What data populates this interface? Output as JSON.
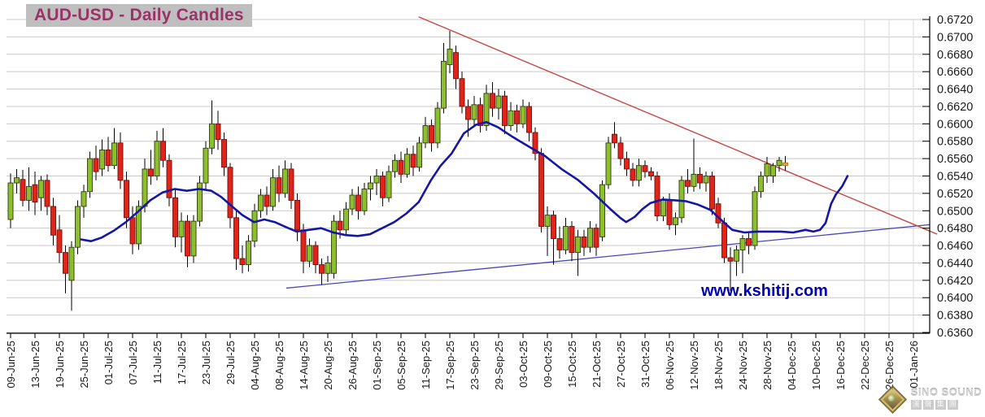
{
  "title": "AUD-USD - Daily Candles",
  "watermark": "www.kshitij.com",
  "logo": {
    "name": "SINO SOUND",
    "chinese": "漢聲集團"
  },
  "colors": {
    "up": "#8dbf2d",
    "up_border": "#2f3a12",
    "down": "#e02419",
    "down_border": "#701008",
    "wick": "#000000",
    "ma_line": "#1515a8",
    "trend_red": "#c84545",
    "trend_blue": "#4747bb",
    "grid": "#c9c9c9",
    "grid_future": "#d9d9d9",
    "axis": "#000000",
    "tick_text": "#1a1a1a",
    "last_candle_fill": "#c9b45a",
    "last_candle_border": "#c07000"
  },
  "chart_data": {
    "type": "candlestick",
    "title": "AUD-USD - Daily Candles",
    "ylim": [
      0.636,
      0.672
    ],
    "y_tick_labels": [
      "0.6720",
      "0.6700",
      "0.6680",
      "0.6660",
      "0.6640",
      "0.6620",
      "0.6600",
      "0.6580",
      "0.6560",
      "0.6540",
      "0.6520",
      "0.6500",
      "0.6480",
      "0.6460",
      "0.6440",
      "0.6420",
      "0.6400",
      "0.6380",
      "0.6360"
    ],
    "x_tick_labels": [
      "09-Jun-25",
      "13-Jun-25",
      "19-Jun-25",
      "25-Jun-25",
      "01-Jul-25",
      "07-Jul-25",
      "11-Jul-25",
      "17-Jul-25",
      "23-Jul-25",
      "29-Jul-25",
      "04-Aug-25",
      "08-Aug-25",
      "14-Aug-25",
      "20-Aug-25",
      "26-Aug-25",
      "01-Sep-25",
      "05-Sep-25",
      "11-Sep-25",
      "17-Sep-25",
      "23-Sep-25",
      "29-Sep-25",
      "03-Oct-25",
      "09-Oct-25",
      "15-Oct-25",
      "21-Oct-25",
      "27-Oct-25",
      "31-Oct-25",
      "06-Nov-25",
      "12-Nov-25",
      "18-Nov-25",
      "24-Nov-25",
      "28-Nov-25",
      "04-Dec-25",
      "10-Dec-25",
      "16-Dec-25",
      "22-Dec-25",
      "26-Dec-25",
      "01-Jan-26"
    ],
    "candles_per_tick": 4,
    "future_vgrid_indexes": [
      140,
      144,
      148
    ],
    "candles": [
      [
        0.649,
        0.6543,
        0.648,
        0.6532
      ],
      [
        0.6532,
        0.6548,
        0.652,
        0.6538
      ],
      [
        0.6536,
        0.6547,
        0.6505,
        0.6512
      ],
      [
        0.6512,
        0.655,
        0.65,
        0.6528
      ],
      [
        0.653,
        0.6545,
        0.6495,
        0.651
      ],
      [
        0.6515,
        0.654,
        0.65,
        0.6535
      ],
      [
        0.6535,
        0.6542,
        0.6495,
        0.6505
      ],
      [
        0.6505,
        0.6515,
        0.646,
        0.6472
      ],
      [
        0.6478,
        0.6495,
        0.644,
        0.6452
      ],
      [
        0.6452,
        0.646,
        0.6405,
        0.6428
      ],
      [
        0.642,
        0.6465,
        0.6385,
        0.6458
      ],
      [
        0.6458,
        0.6512,
        0.645,
        0.6505
      ],
      [
        0.6505,
        0.653,
        0.6492,
        0.6522
      ],
      [
        0.6522,
        0.6568,
        0.6515,
        0.656
      ],
      [
        0.656,
        0.6575,
        0.6535,
        0.6545
      ],
      [
        0.6548,
        0.6582,
        0.654,
        0.657
      ],
      [
        0.657,
        0.6585,
        0.6545,
        0.6552
      ],
      [
        0.6552,
        0.6595,
        0.6548,
        0.6578
      ],
      [
        0.6578,
        0.659,
        0.6525,
        0.6535
      ],
      [
        0.6535,
        0.6545,
        0.648,
        0.6492
      ],
      [
        0.6492,
        0.6505,
        0.645,
        0.6462
      ],
      [
        0.6462,
        0.6512,
        0.6455,
        0.6505
      ],
      [
        0.6505,
        0.656,
        0.6498,
        0.6548
      ],
      [
        0.6548,
        0.657,
        0.653,
        0.654
      ],
      [
        0.654,
        0.6592,
        0.6535,
        0.658
      ],
      [
        0.658,
        0.6595,
        0.655,
        0.6558
      ],
      [
        0.6558,
        0.6565,
        0.6505,
        0.6515
      ],
      [
        0.6515,
        0.6525,
        0.6458,
        0.647
      ],
      [
        0.647,
        0.6498,
        0.6452,
        0.6488
      ],
      [
        0.6488,
        0.6495,
        0.6435,
        0.6448
      ],
      [
        0.6448,
        0.6495,
        0.644,
        0.6488
      ],
      [
        0.6488,
        0.654,
        0.6482,
        0.6532
      ],
      [
        0.6532,
        0.658,
        0.6525,
        0.6572
      ],
      [
        0.6572,
        0.6627,
        0.6565,
        0.66
      ],
      [
        0.66,
        0.6615,
        0.657,
        0.6582
      ],
      [
        0.6582,
        0.659,
        0.654,
        0.655
      ],
      [
        0.655,
        0.6555,
        0.648,
        0.6492
      ],
      [
        0.6492,
        0.65,
        0.6432,
        0.6445
      ],
      [
        0.6445,
        0.646,
        0.6428,
        0.6438
      ],
      [
        0.6438,
        0.6472,
        0.643,
        0.6465
      ],
      [
        0.6465,
        0.6508,
        0.6458,
        0.65
      ],
      [
        0.65,
        0.6525,
        0.6492,
        0.6518
      ],
      [
        0.6518,
        0.6528,
        0.6495,
        0.6505
      ],
      [
        0.6505,
        0.6548,
        0.65,
        0.6538
      ],
      [
        0.6538,
        0.6552,
        0.651,
        0.652
      ],
      [
        0.652,
        0.6558,
        0.6515,
        0.6548
      ],
      [
        0.6548,
        0.6555,
        0.6502,
        0.6512
      ],
      [
        0.6512,
        0.652,
        0.6465,
        0.6478
      ],
      [
        0.6478,
        0.6485,
        0.6428,
        0.6442
      ],
      [
        0.6442,
        0.6468,
        0.6435,
        0.646
      ],
      [
        0.646,
        0.6465,
        0.6428,
        0.6438
      ],
      [
        0.6438,
        0.6445,
        0.6415,
        0.6428
      ],
      [
        0.6428,
        0.6448,
        0.6418,
        0.644
      ],
      [
        0.6428,
        0.6495,
        0.6422,
        0.6488
      ],
      [
        0.6488,
        0.65,
        0.6468,
        0.6478
      ],
      [
        0.6478,
        0.651,
        0.6472,
        0.6502
      ],
      [
        0.6502,
        0.6525,
        0.6495,
        0.6518
      ],
      [
        0.6518,
        0.6528,
        0.649,
        0.65
      ],
      [
        0.65,
        0.6532,
        0.6495,
        0.6525
      ],
      [
        0.6525,
        0.654,
        0.6512,
        0.6532
      ],
      [
        0.6532,
        0.6548,
        0.6518,
        0.654
      ],
      [
        0.654,
        0.6545,
        0.6505,
        0.6515
      ],
      [
        0.6515,
        0.6552,
        0.651,
        0.6545
      ],
      [
        0.6545,
        0.6565,
        0.6538,
        0.6558
      ],
      [
        0.6558,
        0.6568,
        0.6532,
        0.6542
      ],
      [
        0.6542,
        0.6572,
        0.6538,
        0.6565
      ],
      [
        0.6565,
        0.6575,
        0.654,
        0.655
      ],
      [
        0.655,
        0.6585,
        0.6545,
        0.6578
      ],
      [
        0.6578,
        0.6608,
        0.6572,
        0.6598
      ],
      [
        0.6598,
        0.6605,
        0.6568,
        0.6578
      ],
      [
        0.6578,
        0.6625,
        0.6572,
        0.6618
      ],
      [
        0.6618,
        0.6693,
        0.6612,
        0.6672
      ],
      [
        0.6668,
        0.6707,
        0.6658,
        0.6686
      ],
      [
        0.6682,
        0.669,
        0.664,
        0.6652
      ],
      [
        0.6652,
        0.666,
        0.6612,
        0.662
      ],
      [
        0.662,
        0.6628,
        0.6585,
        0.6605
      ],
      [
        0.6605,
        0.6632,
        0.6598,
        0.6622
      ],
      [
        0.6622,
        0.663,
        0.659,
        0.6598
      ],
      [
        0.6598,
        0.6645,
        0.6592,
        0.6635
      ],
      [
        0.6635,
        0.6648,
        0.6608,
        0.6618
      ],
      [
        0.6618,
        0.664,
        0.6605,
        0.6632
      ],
      [
        0.6632,
        0.6638,
        0.6588,
        0.6598
      ],
      [
        0.6598,
        0.6625,
        0.6592,
        0.6615
      ],
      [
        0.6615,
        0.6622,
        0.659,
        0.66
      ],
      [
        0.66,
        0.6628,
        0.6595,
        0.662
      ],
      [
        0.662,
        0.6625,
        0.658,
        0.659
      ],
      [
        0.659,
        0.6596,
        0.6558,
        0.6566
      ],
      [
        0.6566,
        0.6572,
        0.6475,
        0.6482
      ],
      [
        0.6482,
        0.6505,
        0.6448,
        0.6495
      ],
      [
        0.6495,
        0.65,
        0.6438,
        0.6468
      ],
      [
        0.6468,
        0.6482,
        0.6445,
        0.6455
      ],
      [
        0.6455,
        0.6492,
        0.645,
        0.6482
      ],
      [
        0.6482,
        0.6488,
        0.6442,
        0.6452
      ],
      [
        0.6452,
        0.6478,
        0.6425,
        0.647
      ],
      [
        0.647,
        0.6478,
        0.6448,
        0.6458
      ],
      [
        0.6458,
        0.6488,
        0.6452,
        0.648
      ],
      [
        0.648,
        0.6485,
        0.6448,
        0.6458
      ],
      [
        0.647,
        0.6535,
        0.6465,
        0.653
      ],
      [
        0.653,
        0.6585,
        0.6525,
        0.6578
      ],
      [
        0.6588,
        0.6602,
        0.6572,
        0.6578
      ],
      [
        0.6578,
        0.6585,
        0.6552,
        0.656
      ],
      [
        0.656,
        0.6568,
        0.654,
        0.6548
      ],
      [
        0.6548,
        0.6555,
        0.6528,
        0.6535
      ],
      [
        0.6535,
        0.656,
        0.6528,
        0.6552
      ],
      [
        0.6552,
        0.6558,
        0.6538,
        0.6545
      ],
      [
        0.6545,
        0.655,
        0.6535,
        0.654
      ],
      [
        0.654,
        0.6545,
        0.6488,
        0.6494
      ],
      [
        0.6494,
        0.6516,
        0.6488,
        0.6512
      ],
      [
        0.6512,
        0.652,
        0.6478,
        0.6484
      ],
      [
        0.6484,
        0.6498,
        0.6472,
        0.6492
      ],
      [
        0.6492,
        0.654,
        0.6486,
        0.6535
      ],
      [
        0.6535,
        0.6548,
        0.652,
        0.6528
      ],
      [
        0.6528,
        0.6583,
        0.6522,
        0.6542
      ],
      [
        0.6542,
        0.655,
        0.6525,
        0.6532
      ],
      [
        0.6532,
        0.6545,
        0.6522,
        0.654
      ],
      [
        0.654,
        0.6545,
        0.6495,
        0.6502
      ],
      [
        0.6508,
        0.6515,
        0.648,
        0.6486
      ],
      [
        0.6486,
        0.6492,
        0.644,
        0.6446
      ],
      [
        0.6446,
        0.6458,
        0.6408,
        0.6442
      ],
      [
        0.6442,
        0.646,
        0.6425,
        0.6455
      ],
      [
        0.6455,
        0.6472,
        0.6428,
        0.6468
      ],
      [
        0.6468,
        0.6475,
        0.645,
        0.646
      ],
      [
        0.646,
        0.6528,
        0.6455,
        0.6522
      ],
      [
        0.6522,
        0.6545,
        0.6515,
        0.654
      ],
      [
        0.654,
        0.6562,
        0.6532,
        0.6554
      ],
      [
        0.654,
        0.6555,
        0.6532,
        0.6552
      ],
      [
        0.6552,
        0.6562,
        0.6545,
        0.6558
      ],
      [
        0.6552,
        0.6563,
        0.6546,
        0.6555,
        "last"
      ]
    ],
    "moving_average_points": [
      [
        11.6,
        0.6467
      ],
      [
        13.2,
        0.6465
      ],
      [
        14.9,
        0.6469
      ],
      [
        16.9,
        0.6477
      ],
      [
        18.9,
        0.6487
      ],
      [
        20.9,
        0.6499
      ],
      [
        22.9,
        0.6512
      ],
      [
        24.9,
        0.6521
      ],
      [
        26.9,
        0.6525
      ],
      [
        28.9,
        0.6523
      ],
      [
        30.9,
        0.6525
      ],
      [
        32.9,
        0.6523
      ],
      [
        34.5,
        0.6516
      ],
      [
        36.3,
        0.6505
      ],
      [
        38.0,
        0.6495
      ],
      [
        39.9,
        0.6487
      ],
      [
        41.6,
        0.649
      ],
      [
        43.3,
        0.6487
      ],
      [
        45.2,
        0.6481
      ],
      [
        46.9,
        0.6476
      ],
      [
        48.9,
        0.6478
      ],
      [
        50.9,
        0.648
      ],
      [
        52.9,
        0.6475
      ],
      [
        54.9,
        0.6472
      ],
      [
        56.9,
        0.6471
      ],
      [
        58.9,
        0.6473
      ],
      [
        60.9,
        0.648
      ],
      [
        62.9,
        0.6487
      ],
      [
        64.9,
        0.6497
      ],
      [
        66.9,
        0.651
      ],
      [
        68.9,
        0.6535
      ],
      [
        70.5,
        0.6552
      ],
      [
        72.3,
        0.6566
      ],
      [
        74.3,
        0.6589
      ],
      [
        76.3,
        0.6599
      ],
      [
        78.0,
        0.6602
      ],
      [
        79.9,
        0.6596
      ],
      [
        82.3,
        0.6585
      ],
      [
        84.9,
        0.6574
      ],
      [
        87.6,
        0.6563
      ],
      [
        90.3,
        0.6548
      ],
      [
        92.9,
        0.6536
      ],
      [
        95.6,
        0.652
      ],
      [
        98.3,
        0.6502
      ],
      [
        99.9,
        0.6492
      ],
      [
        100.9,
        0.6487
      ],
      [
        102.3,
        0.6493
      ],
      [
        103.6,
        0.6502
      ],
      [
        104.9,
        0.6509
      ],
      [
        106.9,
        0.6513
      ],
      [
        108.9,
        0.6512
      ],
      [
        110.7,
        0.6511
      ],
      [
        112.7,
        0.6507
      ],
      [
        114.7,
        0.6501
      ],
      [
        116.7,
        0.6488
      ],
      [
        118.3,
        0.6478
      ],
      [
        120.3,
        0.6475
      ],
      [
        122.3,
        0.6476
      ],
      [
        124.3,
        0.6476
      ],
      [
        126.3,
        0.6476
      ],
      [
        128.3,
        0.6475
      ],
      [
        130.3,
        0.6478
      ],
      [
        131.6,
        0.6476
      ],
      [
        132.7,
        0.6478
      ],
      [
        133.6,
        0.6486
      ],
      [
        134.5,
        0.6508
      ],
      [
        135.3,
        0.6519
      ],
      [
        136.3,
        0.6528
      ],
      [
        137.2,
        0.654
      ]
    ],
    "trendlines": {
      "red_descending": {
        "from_index": 66.9,
        "from_price": 0.6723,
        "to_index": 151.9,
        "to_price": 0.6473
      },
      "blue_ascending": {
        "from_index": 45.2,
        "from_price": 0.6411,
        "to_index": 150.7,
        "to_price": 0.6484
      }
    }
  }
}
